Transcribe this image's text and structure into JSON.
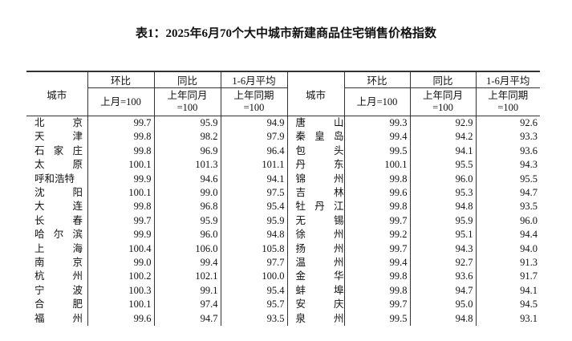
{
  "title": "表1：2025年6月70个大中城市新建商品住宅销售价格指数",
  "headers": {
    "city": "城市",
    "mom": "环比",
    "mom_sub": "上月=100",
    "yoy": "同比",
    "yoy_sub1": "上年同月",
    "yoy_sub2": "=100",
    "avg": "1-6月平均",
    "avg_sub1": "上年同期",
    "avg_sub2": "=100"
  },
  "rows": [
    {
      "left": {
        "city": [
          "北",
          "京"
        ],
        "mom": "99.7",
        "yoy": "95.9",
        "avg": "94.9"
      },
      "right": {
        "city": [
          "唐",
          "山"
        ],
        "mom": "99.3",
        "yoy": "92.9",
        "avg": "92.6"
      }
    },
    {
      "left": {
        "city": [
          "天",
          "津"
        ],
        "mom": "99.8",
        "yoy": "98.2",
        "avg": "97.9"
      },
      "right": {
        "city": [
          "秦",
          "皇",
          "岛"
        ],
        "mom": "99.4",
        "yoy": "94.2",
        "avg": "93.3"
      }
    },
    {
      "left": {
        "city": [
          "石",
          "家",
          "庄"
        ],
        "mom": "99.8",
        "yoy": "96.9",
        "avg": "96.4"
      },
      "right": {
        "city": [
          "包",
          "头"
        ],
        "mom": "99.5",
        "yoy": "94.1",
        "avg": "93.6"
      }
    },
    {
      "left": {
        "city": [
          "太",
          "原"
        ],
        "mom": "100.1",
        "yoy": "101.3",
        "avg": "101.1"
      },
      "right": {
        "city": [
          "丹",
          "东"
        ],
        "mom": "100.1",
        "yoy": "95.5",
        "avg": "94.3"
      }
    },
    {
      "left": {
        "city": [
          "呼和浩特"
        ],
        "mom": "99.9",
        "yoy": "94.6",
        "avg": "94.1"
      },
      "right": {
        "city": [
          "锦",
          "州"
        ],
        "mom": "99.8",
        "yoy": "96.0",
        "avg": "95.5"
      }
    },
    {
      "left": {
        "city": [
          "沈",
          "阳"
        ],
        "mom": "100.1",
        "yoy": "99.0",
        "avg": "97.5"
      },
      "right": {
        "city": [
          "吉",
          "林"
        ],
        "mom": "99.6",
        "yoy": "95.3",
        "avg": "94.7"
      }
    },
    {
      "left": {
        "city": [
          "大",
          "连"
        ],
        "mom": "99.8",
        "yoy": "96.8",
        "avg": "95.4"
      },
      "right": {
        "city": [
          "牡",
          "丹",
          "江"
        ],
        "mom": "99.8",
        "yoy": "94.8",
        "avg": "93.5"
      }
    },
    {
      "left": {
        "city": [
          "长",
          "春"
        ],
        "mom": "99.7",
        "yoy": "95.9",
        "avg": "95.9"
      },
      "right": {
        "city": [
          "无",
          "锡"
        ],
        "mom": "99.7",
        "yoy": "95.9",
        "avg": "96.0"
      }
    },
    {
      "left": {
        "city": [
          "哈",
          "尔",
          "滨"
        ],
        "mom": "99.9",
        "yoy": "96.0",
        "avg": "94.8"
      },
      "right": {
        "city": [
          "徐",
          "州"
        ],
        "mom": "99.2",
        "yoy": "95.1",
        "avg": "94.4"
      }
    },
    {
      "left": {
        "city": [
          "上",
          "海"
        ],
        "mom": "100.4",
        "yoy": "106.0",
        "avg": "105.8"
      },
      "right": {
        "city": [
          "扬",
          "州"
        ],
        "mom": "99.7",
        "yoy": "94.3",
        "avg": "94.0"
      }
    },
    {
      "left": {
        "city": [
          "南",
          "京"
        ],
        "mom": "99.0",
        "yoy": "99.4",
        "avg": "97.7"
      },
      "right": {
        "city": [
          "温",
          "州"
        ],
        "mom": "99.4",
        "yoy": "92.7",
        "avg": "91.3"
      }
    },
    {
      "left": {
        "city": [
          "杭",
          "州"
        ],
        "mom": "100.2",
        "yoy": "102.1",
        "avg": "100.0"
      },
      "right": {
        "city": [
          "金",
          "华"
        ],
        "mom": "99.8",
        "yoy": "93.6",
        "avg": "91.7"
      }
    },
    {
      "left": {
        "city": [
          "宁",
          "波"
        ],
        "mom": "100.3",
        "yoy": "99.1",
        "avg": "95.4"
      },
      "right": {
        "city": [
          "蚌",
          "埠"
        ],
        "mom": "99.8",
        "yoy": "94.7",
        "avg": "94.1"
      }
    },
    {
      "left": {
        "city": [
          "合",
          "肥"
        ],
        "mom": "100.1",
        "yoy": "97.4",
        "avg": "95.7"
      },
      "right": {
        "city": [
          "安",
          "庆"
        ],
        "mom": "99.7",
        "yoy": "95.0",
        "avg": "94.5"
      }
    },
    {
      "left": {
        "city": [
          "福",
          "州"
        ],
        "mom": "99.6",
        "yoy": "94.7",
        "avg": "93.5"
      },
      "right": {
        "city": [
          "泉",
          "州"
        ],
        "mom": "99.5",
        "yoy": "94.8",
        "avg": "93.1"
      }
    }
  ]
}
